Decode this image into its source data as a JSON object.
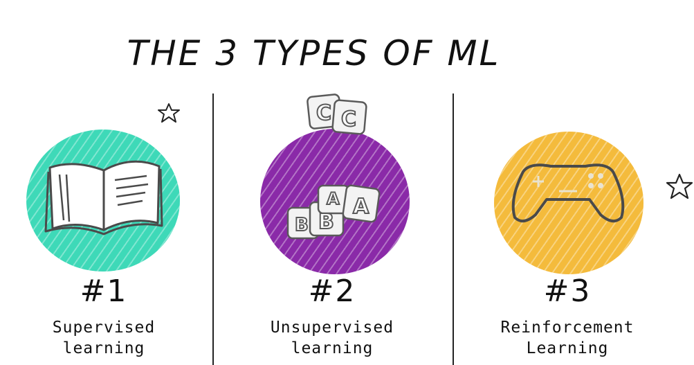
{
  "title": "THE 3 TYPES OF ML",
  "colors": {
    "supervised": "#3ed9b8",
    "unsupervised": "#8a2aa8",
    "reinforcement": "#f4bb3c",
    "ink": "#111111",
    "icon_stroke": "#4a4a4a"
  },
  "types": [
    {
      "number": "#1",
      "label_line1": "Supervised",
      "label_line2": "learning",
      "icon": "book-icon"
    },
    {
      "number": "#2",
      "label_line1": "Unsupervised",
      "label_line2": "learning",
      "icon": "letter-blocks-icon"
    },
    {
      "number": "#3",
      "label_line1": "Reinforcement",
      "label_line2": "Learning",
      "icon": "game-controller-icon"
    }
  ],
  "blocks": {
    "top": [
      "C",
      "C"
    ],
    "bottom": [
      "B",
      "B",
      "A",
      "A"
    ]
  }
}
